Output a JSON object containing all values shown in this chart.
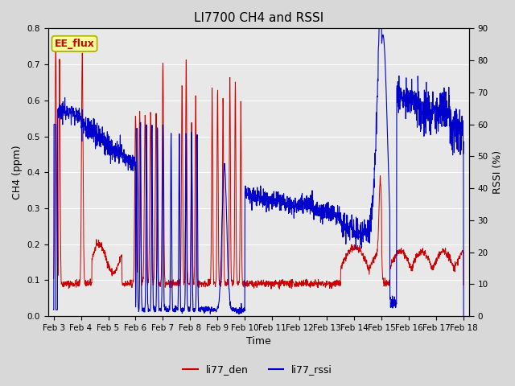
{
  "title": "LI7700 CH4 and RSSI",
  "xlabel": "Time",
  "ylabel_left": "CH4 (ppm)",
  "ylabel_right": "RSSI (%)",
  "annotation_text": "EE_flux",
  "annotation_bg": "#FFFF99",
  "annotation_border": "#AAAA00",
  "annotation_fg": "#CC0000",
  "ylim_left": [
    0.0,
    0.8
  ],
  "ylim_right": [
    0,
    90
  ],
  "yticks_left": [
    0.0,
    0.1,
    0.2,
    0.3,
    0.4,
    0.5,
    0.6,
    0.7,
    0.8
  ],
  "yticks_right": [
    0,
    10,
    20,
    30,
    40,
    50,
    60,
    70,
    80,
    90
  ],
  "xtick_labels": [
    "Feb 3",
    "Feb 4",
    "Feb 5",
    "Feb 6",
    "Feb 7",
    "Feb 8",
    "Feb 9",
    "Feb 10",
    "Feb 11",
    "Feb 12",
    "Feb 13",
    "Feb 14",
    "Feb 15",
    "Feb 16",
    "Feb 17",
    "Feb 18"
  ],
  "color_ch4": "#CC0000",
  "color_rssi": "#0000CC",
  "legend_labels": [
    "li77_den",
    "li77_rssi"
  ],
  "bg_color": "#D8D8D8",
  "plot_bg": "#E8E8E8",
  "grid_color": "#FFFFFF",
  "title_fontsize": 11,
  "axis_label_fontsize": 9,
  "tick_fontsize": 7.5
}
